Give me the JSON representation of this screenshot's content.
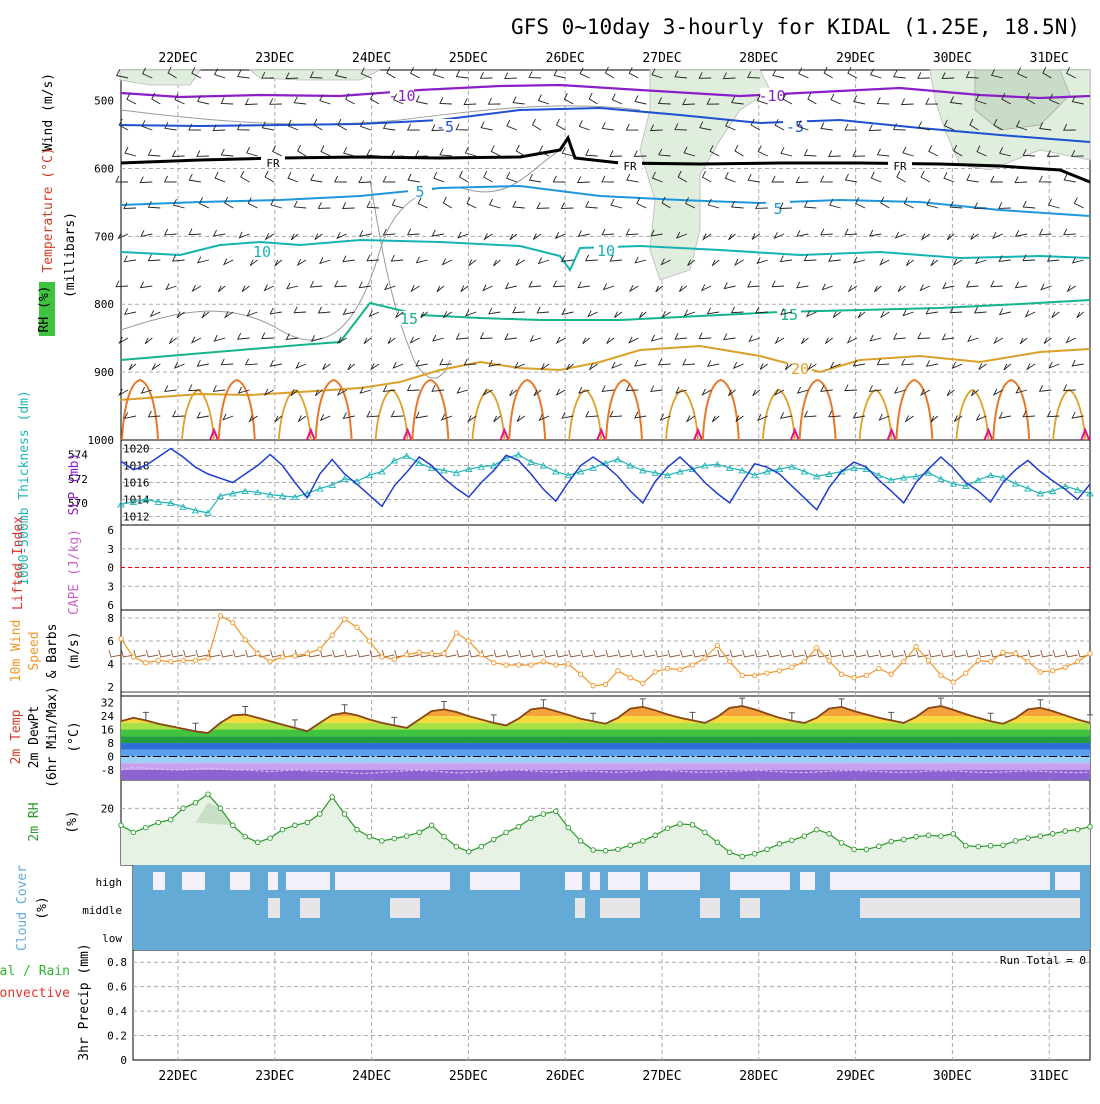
{
  "title": "GFS 0~10day 3-hourly for KIDAL (1.25E, 18.5N)",
  "dates": [
    "22DEC",
    "23DEC",
    "24DEC",
    "25DEC",
    "26DEC",
    "27DEC",
    "28DEC",
    "29DEC",
    "30DEC",
    "31DEC"
  ],
  "colors": {
    "grid": "#aaaaaa",
    "temp_m10": "#8a1ec8",
    "temp_m5": "#1e50d2",
    "temp_fr": "#000000",
    "temp_5": "#1e96dc",
    "temp_10": "#14b4b4",
    "temp_15": "#14b48c",
    "temp_20": "#dca028",
    "temp_25": "#e6782a",
    "temp_30": "#e6148c",
    "rh_fill": "#dfeedd",
    "thickness": "#21b5b5",
    "slp": "#1e3ccf",
    "lifted": "#ff0000",
    "cape": "#c864c8",
    "wind_speed": "#f09628",
    "barb_brown": "#8c5a3c",
    "rh2m": "#2c9a2c",
    "cloud": "#64aad7",
    "cloud_gap": "#f2f0f8",
    "cloud_gap2": "#e6e6e6",
    "precip_total": "#32b432",
    "precip_conv": "#e63232"
  },
  "panels": {
    "upper": {
      "ylabel_rh": "RH (%)",
      "ylabel_temp": "Temperature (°C)",
      "ylabel_wind": "Wind (m/s)",
      "ylabel_p": "(millibars)",
      "ticks": [
        "500",
        "600",
        "700",
        "800",
        "900",
        "1000"
      ]
    },
    "slp": {
      "ylabel_thk": "1000-500mb Thickness (dm)",
      "ylabel_slp": "SLP (mb)",
      "thk_ticks": [
        "574",
        "572",
        "570"
      ],
      "slp_ticks": [
        "1020",
        "1018",
        "1016",
        "1014",
        "1012"
      ]
    },
    "li": {
      "ylabel_li": "Lifted Index",
      "ylabel_cape": "CAPE (J/kg)",
      "ticks": [
        "6",
        "3",
        "0",
        "3",
        "6"
      ]
    },
    "wind": {
      "ylabel1": "10m Wind",
      "ylabel2": "Speed",
      "ylabel3": "& Barbs",
      "ylabel_unit": "(m/s)",
      "ticks": [
        "8",
        "6",
        "4",
        "2"
      ]
    },
    "temp2m": {
      "ylabel1": "2m Temp",
      "ylabel2": "2m DewPt",
      "ylabel3": "(6hr Min/Max)",
      "ylabel_unit": "(°C)",
      "ticks": [
        "32",
        "24",
        "16",
        "8",
        "0",
        "-8"
      ]
    },
    "rh2m": {
      "ylabel1": "2m RH",
      "ylabel_unit": "(%)",
      "ticks": [
        "20"
      ]
    },
    "cloud": {
      "ylabel1": "Cloud Cover",
      "ylabel_unit": "(%)",
      "levels": [
        "high",
        "middle",
        "low"
      ]
    },
    "precip": {
      "ylabel1": "Total / Rain",
      "ylabel2": "Convective",
      "ylabel_unit": "3hr Precip (mm)",
      "ticks": [
        "0.8",
        "0.6",
        "0.4",
        "0.2",
        "0"
      ],
      "run_total": "Run Total = 0"
    }
  },
  "contour_labels": [
    "-10",
    "-5",
    "FR",
    "5",
    "10",
    "15",
    "20"
  ],
  "chart_data": [
    {
      "type": "line",
      "name": "slp-thickness",
      "series": [
        {
          "name": "SLP (mb)",
          "values": [
            1018.5,
            1017.5,
            1018,
            1019,
            1020,
            1019,
            1017.8,
            1017,
            1016.5,
            1016,
            1017,
            1018,
            1019.3,
            1018,
            1016,
            1014.2,
            1017,
            1018.7,
            1017,
            1015.8,
            1014.5,
            1013.2,
            1015.6,
            1017.2,
            1019,
            1018,
            1016.5,
            1015.3,
            1014.3,
            1016,
            1017.4,
            1019.2,
            1018.6,
            1017,
            1015.2,
            1013.8,
            1016,
            1018,
            1019,
            1018,
            1016.7,
            1015,
            1013.6,
            1016.1,
            1017.8,
            1019,
            1017.6,
            1016,
            1014.7,
            1013.6,
            1016,
            1018.2,
            1017.8,
            1017,
            1015.6,
            1014.2,
            1012.8,
            1015.4,
            1017.3,
            1018.4,
            1017.8,
            1016.3,
            1015,
            1013.6,
            1016,
            1017.6,
            1019,
            1017.7,
            1016,
            1015,
            1013.7,
            1016,
            1017.5,
            1018.6,
            1017.3,
            1016.2,
            1015.2,
            1014,
            1015.8
          ]
        },
        {
          "name": "Thickness (dm)",
          "values": [
            569.9,
            570.1,
            570.3,
            570.1,
            570,
            569.7,
            569.4,
            569.2,
            570.6,
            570.8,
            571,
            570.9,
            570.7,
            570.6,
            570.5,
            570.8,
            571.2,
            571.5,
            572,
            571.8,
            572.3,
            572.6,
            573.5,
            573.9,
            573.3,
            572.9,
            572.7,
            572.5,
            572.8,
            573,
            573.1,
            573.7,
            574,
            573.4,
            573.1,
            572.6,
            572.3,
            572.6,
            572.9,
            573.3,
            573.6,
            573.1,
            572.7,
            572.5,
            572.3,
            572.6,
            572.8,
            573.1,
            573.2,
            572.9,
            572.7,
            572.3,
            572.6,
            572.8,
            573,
            572.6,
            572.2,
            572.4,
            572.6,
            572.9,
            572.8,
            572.3,
            571.9,
            572.1,
            572.2,
            572.5,
            572,
            571.6,
            571.4,
            571.9,
            572.3,
            572.1,
            571.6,
            571.2,
            570.8,
            571,
            571.4,
            571.1,
            570.8
          ]
        }
      ]
    },
    {
      "type": "line",
      "name": "10m-wind-speed",
      "series": [
        {
          "name": "Speed (m/s)",
          "values": [
            6.2,
            4.6,
            4.1,
            4.3,
            4.2,
            4.3,
            4.3,
            4.5,
            8.2,
            7.6,
            6.1,
            4.9,
            4.2,
            4.6,
            4.7,
            4.9,
            5.3,
            6.5,
            7.9,
            7.2,
            6,
            4.6,
            4.4,
            4.8,
            5,
            4.9,
            4.9,
            6.7,
            6,
            4.8,
            4.1,
            3.9,
            3.9,
            3.9,
            4.2,
            3.9,
            4,
            3.1,
            2.1,
            2.2,
            3.4,
            2.8,
            2.3,
            3.3,
            3.6,
            3.5,
            3.9,
            4.5,
            5.6,
            4.2,
            3,
            3,
            3.2,
            3.4,
            3.7,
            4.2,
            5.4,
            4.3,
            3.1,
            2.8,
            3,
            3.6,
            3.1,
            4.2,
            5.5,
            4.3,
            3,
            2.4,
            3.2,
            4.3,
            4.2,
            5,
            4.9,
            4.2,
            3.3,
            3.4,
            3.7,
            4.2,
            4.9
          ]
        }
      ]
    },
    {
      "type": "line",
      "name": "2m-temperature",
      "series": [
        {
          "name": "2m Temp (°C)",
          "values": [
            21,
            23,
            21.5,
            19.5,
            18,
            16.5,
            15,
            14,
            20,
            24.5,
            25,
            23,
            21,
            19,
            17,
            15,
            20,
            24.7,
            26,
            24.5,
            22,
            20,
            18.5,
            17,
            22,
            27,
            28,
            26.5,
            24,
            22,
            20,
            18.5,
            22.5,
            28,
            29,
            27,
            24.8,
            22.5,
            21,
            19.5,
            23,
            28.5,
            29.5,
            27.5,
            25,
            23,
            21.5,
            20,
            23.5,
            29,
            30,
            28,
            25.5,
            23,
            21.3,
            20,
            23,
            28.5,
            29.5,
            27,
            25,
            23,
            21.5,
            20,
            23.5,
            28.8,
            30,
            27.7,
            25.2,
            23,
            21,
            19.5,
            22.8,
            28,
            29,
            27,
            24.5,
            22,
            20
          ]
        },
        {
          "name": "2m DewPt (°C)",
          "values": [
            -8,
            -6.5,
            -7,
            -7.5,
            -8,
            -8,
            -7.5,
            -7,
            -7.5,
            -8,
            -8,
            -8.5,
            -9,
            -8.5,
            -8,
            -8.5,
            -9,
            -9,
            -9.5,
            -10,
            -10,
            -9.5,
            -9,
            -8.5,
            -8.2,
            -8.6,
            -9.2,
            -9.8,
            -9.5,
            -9,
            -8.5,
            -8.2,
            -8,
            -8.5,
            -9,
            -9.5,
            -9,
            -8.5,
            -8.8,
            -9.2,
            -9.5,
            -9,
            -8.4,
            -8,
            -8.3,
            -8.8,
            -9.2,
            -9.5,
            -9.2,
            -8.8,
            -8.5,
            -8.2,
            -8.5,
            -9,
            -9.4,
            -9.6,
            -9.2,
            -8.8,
            -8.5,
            -8.3,
            -8.6,
            -9,
            -9.3,
            -9.5,
            -9.2,
            -8.7,
            -8.4,
            -8.6,
            -9,
            -9.4,
            -9.6,
            -9.2,
            -8.8,
            -8.6,
            -8.8,
            -9.2,
            -9.5,
            -9.6,
            -9.3
          ]
        }
      ]
    },
    {
      "type": "line",
      "name": "2m-relative-humidity",
      "series": [
        {
          "name": "2m RH (%)",
          "values": [
            14,
            11.5,
            13.2,
            15,
            16,
            20,
            22,
            25,
            20,
            14,
            10,
            8,
            9.5,
            12.5,
            14,
            15,
            18,
            24,
            18,
            12.5,
            10,
            8.5,
            9.3,
            10.2,
            11.5,
            14,
            10,
            6.5,
            4.7,
            6.5,
            9,
            11.5,
            13.5,
            16.5,
            18,
            19,
            13.2,
            8.5,
            5.3,
            5,
            5.5,
            7,
            8.5,
            10.5,
            13,
            14.5,
            14.2,
            11.5,
            8,
            4.5,
            3,
            4,
            5.5,
            7.5,
            8.7,
            10.2,
            12.5,
            11,
            7.8,
            5.5,
            5.5,
            6.6,
            8.3,
            9,
            10,
            10.5,
            10.2,
            11,
            6.8,
            6.5,
            6.8,
            7,
            8.5,
            9.5,
            10.2,
            11,
            12,
            12.5,
            13.5
          ]
        }
      ]
    },
    {
      "type": "bar",
      "name": "3hr-precip",
      "ylim": [
        0,
        0.9
      ],
      "values": [
        0
      ]
    }
  ]
}
